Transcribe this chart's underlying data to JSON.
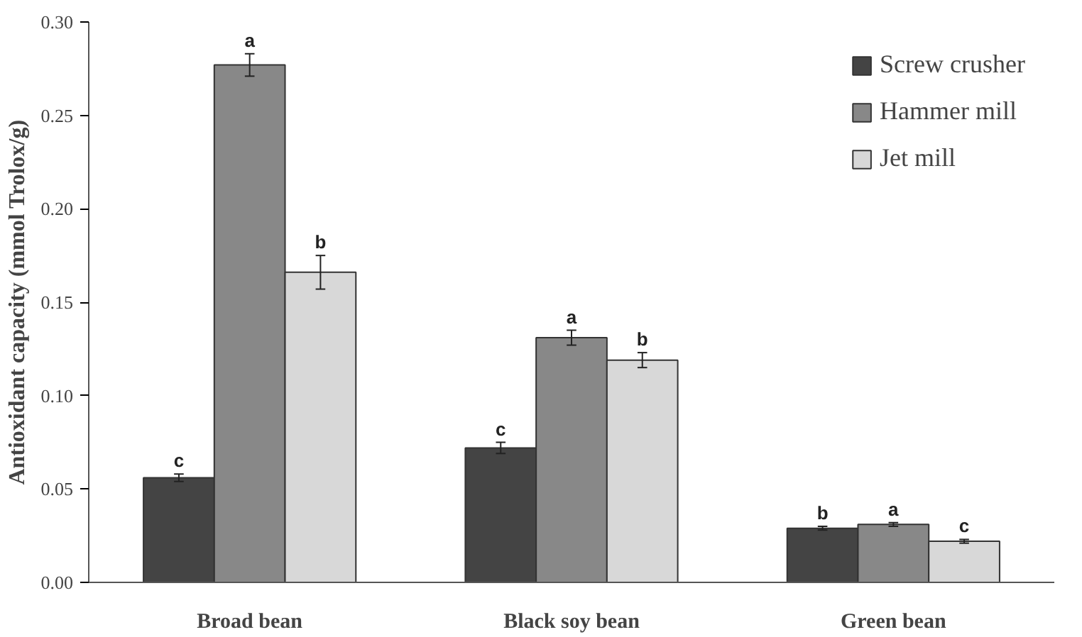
{
  "chart_data": {
    "type": "bar",
    "ylabel": "Antioxidant capacity (mmol Trolox/g)",
    "categories": [
      "Broad bean",
      "Black soy bean",
      "Green bean"
    ],
    "series": [
      {
        "name": "Screw crusher",
        "color": "#444444",
        "values": [
          0.056,
          0.072,
          0.029
        ],
        "errors": [
          0.002,
          0.003,
          0.001
        ],
        "value_labels": [
          "c",
          "c",
          "b"
        ]
      },
      {
        "name": "Hammer mill",
        "color": "#888888",
        "values": [
          0.277,
          0.131,
          0.031
        ],
        "errors": [
          0.006,
          0.004,
          0.001
        ],
        "value_labels": [
          "a",
          "a",
          "a"
        ]
      },
      {
        "name": "Jet mill",
        "color": "#d8d8d8",
        "values": [
          0.166,
          0.119,
          0.022
        ],
        "errors": [
          0.009,
          0.004,
          0.001
        ],
        "value_labels": [
          "b",
          "b",
          "c"
        ]
      }
    ],
    "ylim": [
      0,
      0.3
    ],
    "yticks": [
      {
        "value": 0,
        "label": "0.00"
      },
      {
        "value": 0.05,
        "label": "0.05"
      },
      {
        "value": 0.1,
        "label": "0.10"
      },
      {
        "value": 0.15,
        "label": "0.15"
      },
      {
        "value": 0.2,
        "label": "0.20"
      },
      {
        "value": 0.25,
        "label": "0.25"
      },
      {
        "value": 0.3,
        "label": "0.30"
      }
    ],
    "grid": false,
    "legend": "top right"
  }
}
